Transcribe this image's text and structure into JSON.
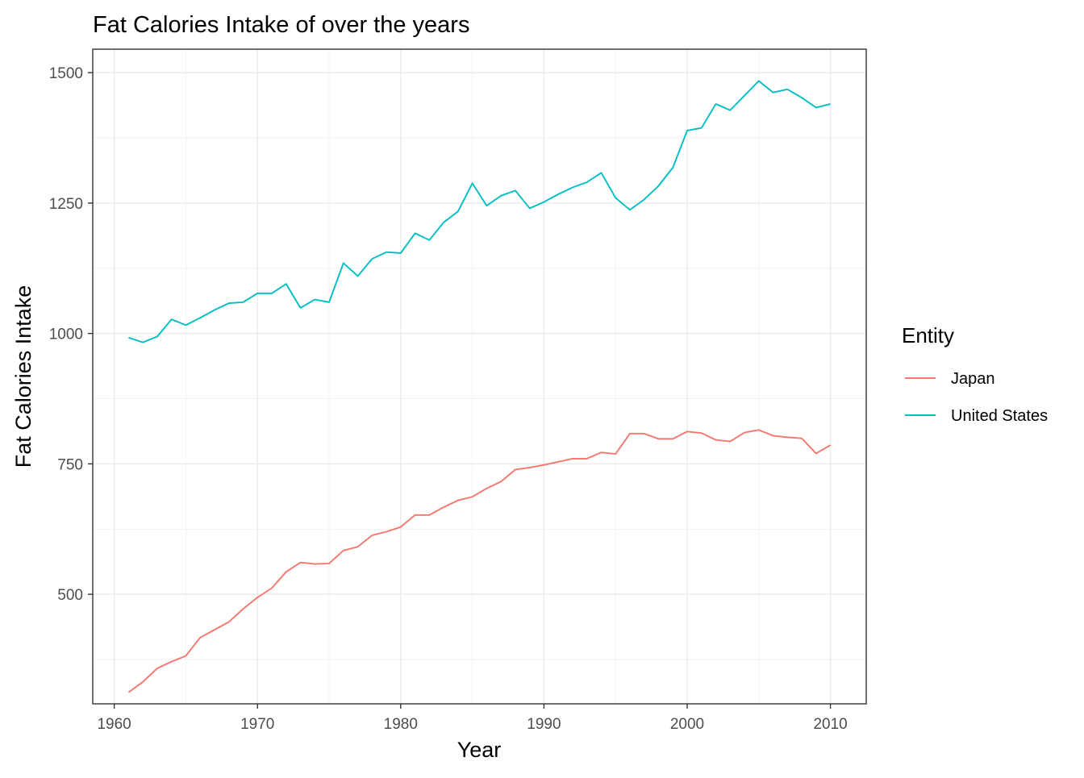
{
  "chart_data": {
    "type": "line",
    "title": "Fat Calories Intake of over the years",
    "xlabel": "Year",
    "ylabel": "Fat Calories Intake",
    "xlim": [
      1958.5,
      2012.5
    ],
    "ylim": [
      290,
      1545
    ],
    "x_ticks": [
      1960,
      1970,
      1980,
      1990,
      2000,
      2010
    ],
    "y_ticks": [
      500,
      750,
      1000,
      1250,
      1500
    ],
    "grid": true,
    "legend": {
      "title": "Entity",
      "position": "right"
    },
    "x": [
      1961,
      1962,
      1963,
      1964,
      1965,
      1966,
      1967,
      1968,
      1969,
      1970,
      1971,
      1972,
      1973,
      1974,
      1975,
      1976,
      1977,
      1978,
      1979,
      1980,
      1981,
      1982,
      1983,
      1984,
      1985,
      1986,
      1987,
      1988,
      1989,
      1990,
      1991,
      1992,
      1993,
      1994,
      1995,
      1996,
      1997,
      1998,
      1999,
      2000,
      2001,
      2002,
      2003,
      2004,
      2005,
      2006,
      2007,
      2008,
      2009,
      2010
    ],
    "series": [
      {
        "name": "Japan",
        "color": "#F8766D",
        "values": [
          312,
          332,
          358,
          371,
          382,
          417,
          432,
          447,
          472,
          494,
          512,
          543,
          561,
          558,
          559,
          584,
          591,
          613,
          620,
          629,
          652,
          652,
          667,
          680,
          687,
          703,
          716,
          739,
          743,
          748,
          754,
          760,
          760,
          772,
          769,
          808,
          808,
          798,
          798,
          812,
          809,
          796,
          793,
          810,
          815,
          804,
          801,
          799,
          770,
          786
        ]
      },
      {
        "name": "United States",
        "color": "#00BFC4",
        "values": [
          992,
          983,
          994,
          1027,
          1016,
          1030,
          1045,
          1058,
          1060,
          1077,
          1077,
          1095,
          1049,
          1065,
          1060,
          1135,
          1110,
          1143,
          1156,
          1154,
          1192,
          1179,
          1213,
          1234,
          1288,
          1245,
          1264,
          1274,
          1240,
          1252,
          1267,
          1280,
          1290,
          1308,
          1260,
          1237,
          1257,
          1283,
          1318,
          1389,
          1394,
          1440,
          1428,
          1456,
          1484,
          1462,
          1468,
          1452,
          1433,
          1440
        ]
      }
    ]
  }
}
